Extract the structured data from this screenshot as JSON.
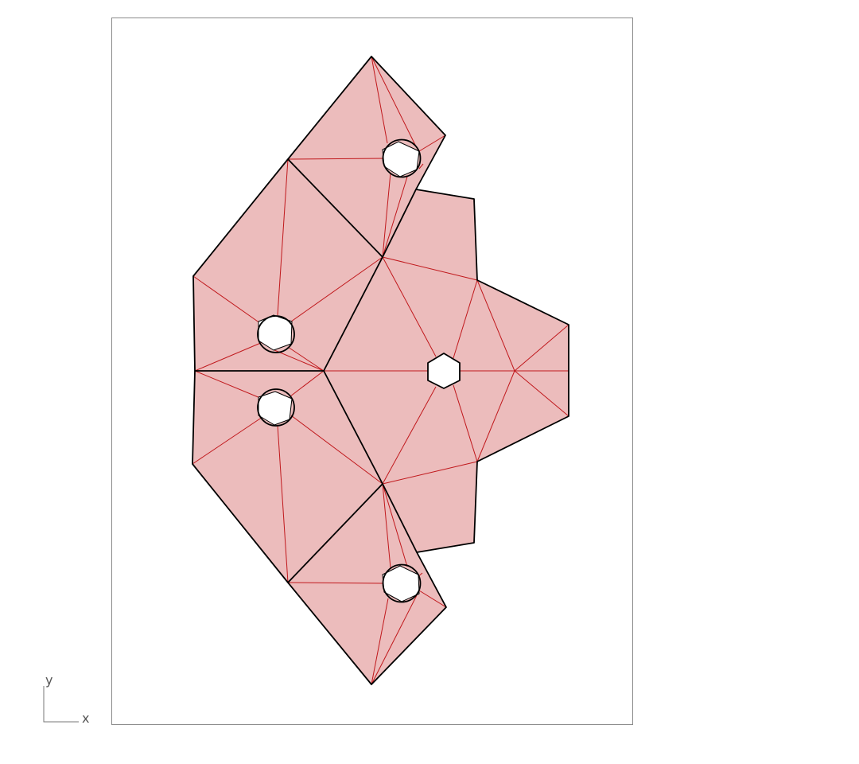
{
  "viewport": {
    "background": "#ffffff",
    "frame_color": "#8a8a8a"
  },
  "model": {
    "face_fill": "#ecbcbc",
    "fold_line_color": "#c0181c",
    "cut_line_color": "#000000",
    "hole_fill": "#ffffff"
  },
  "axis_indicator": {
    "y_label": "y",
    "x_label": "x",
    "color": "#777777"
  }
}
